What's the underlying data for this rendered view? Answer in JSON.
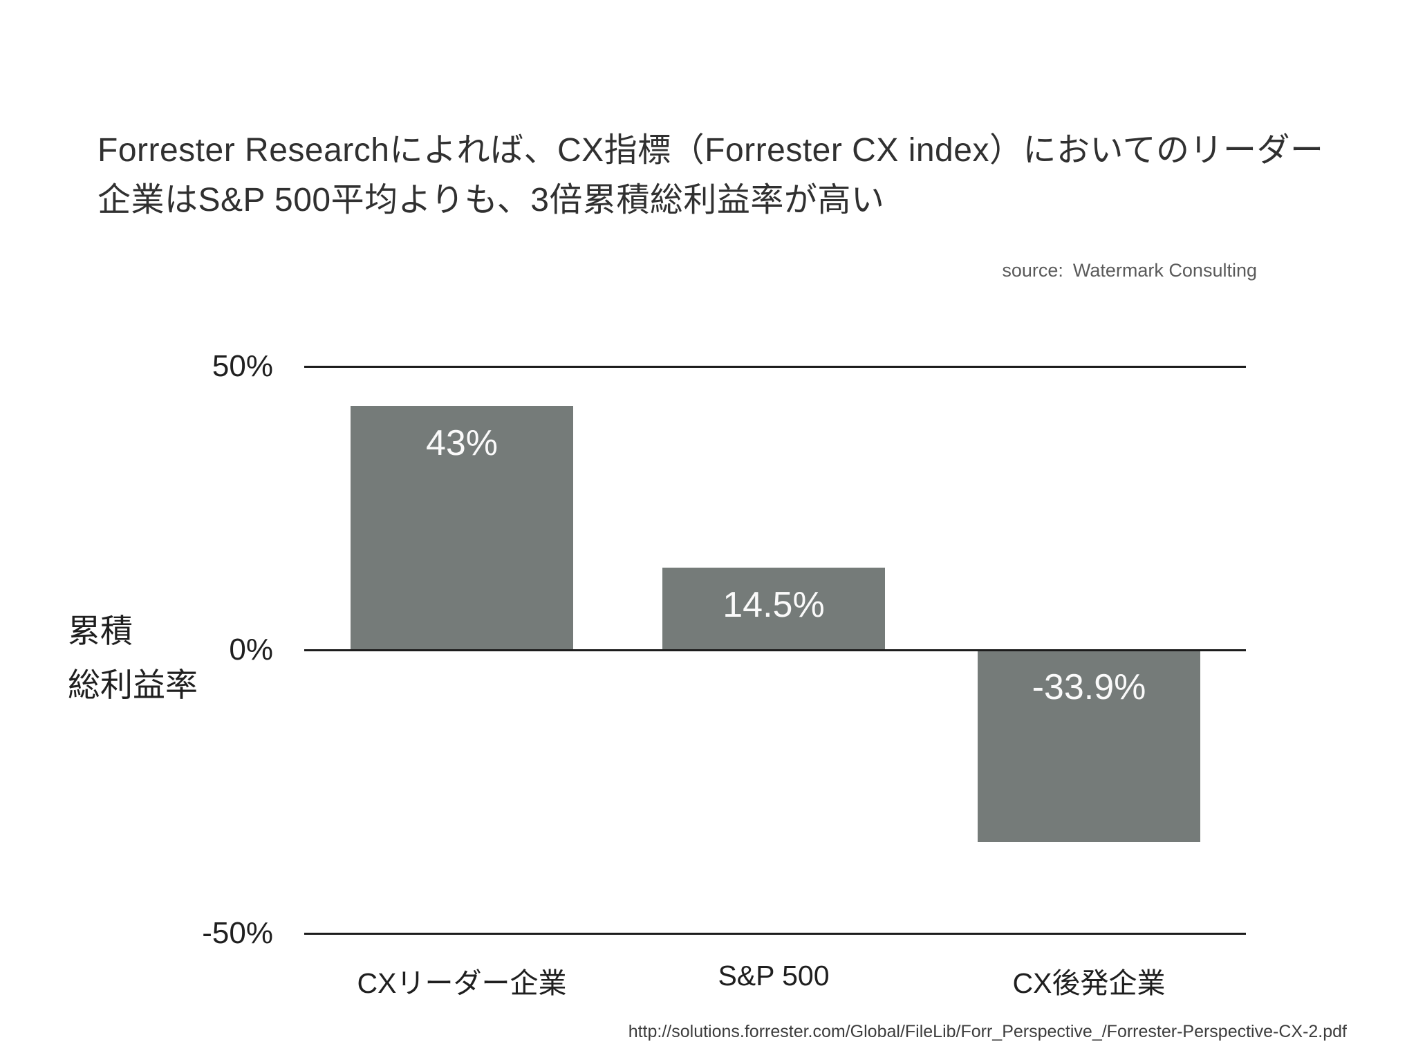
{
  "slide": {
    "title_line1": "Forrester Researchによれば、CX指標（Forrester CX index）においてのリーダー",
    "title_line2": "企業はS&P 500平均よりも、3倍累積総利益率が高い",
    "source_label": "source:",
    "source_name": "Watermark Consulting",
    "footer_url": "http://solutions.forrester.com/Global/FileLib/Forr_Perspective_/Forrester-Perspective-CX-2.pdf"
  },
  "y_axis": {
    "title_lines": [
      "累積",
      "総利益率"
    ]
  },
  "colors": {
    "background": "#ffffff",
    "title_text": "#303030",
    "axis_line": "#1c1c1c",
    "tick_text": "#1f1f1f",
    "source_text": "#5a5a5a",
    "footer_text": "#3c3c3c",
    "bar": "#757b79",
    "bar_value_label": "#fafafa"
  },
  "chart_data": {
    "type": "bar",
    "title": "Forrester Researchによれば、CX指標（Forrester CX index）においてのリーダー企業はS&P 500平均よりも、3倍累積総利益率が高い",
    "categories": [
      "CXリーダー企業",
      "S&P 500",
      "CX後発企業"
    ],
    "values": [
      43,
      14.5,
      -33.9
    ],
    "value_labels": [
      "43%",
      "14.5%",
      "-33.9%"
    ],
    "xlabel": "",
    "ylabel": "累積総利益率",
    "ylim": [
      -50,
      50
    ],
    "yticks": [
      {
        "value": 50,
        "label": "50%"
      },
      {
        "value": 0,
        "label": "0%"
      },
      {
        "value": -50,
        "label": "-50%"
      }
    ],
    "grid": "horizontal-lines-at-ticks-only",
    "legend": "none",
    "bar_color": "#757b79",
    "value_label_color": "#fafafa",
    "source": "Watermark Consulting"
  }
}
